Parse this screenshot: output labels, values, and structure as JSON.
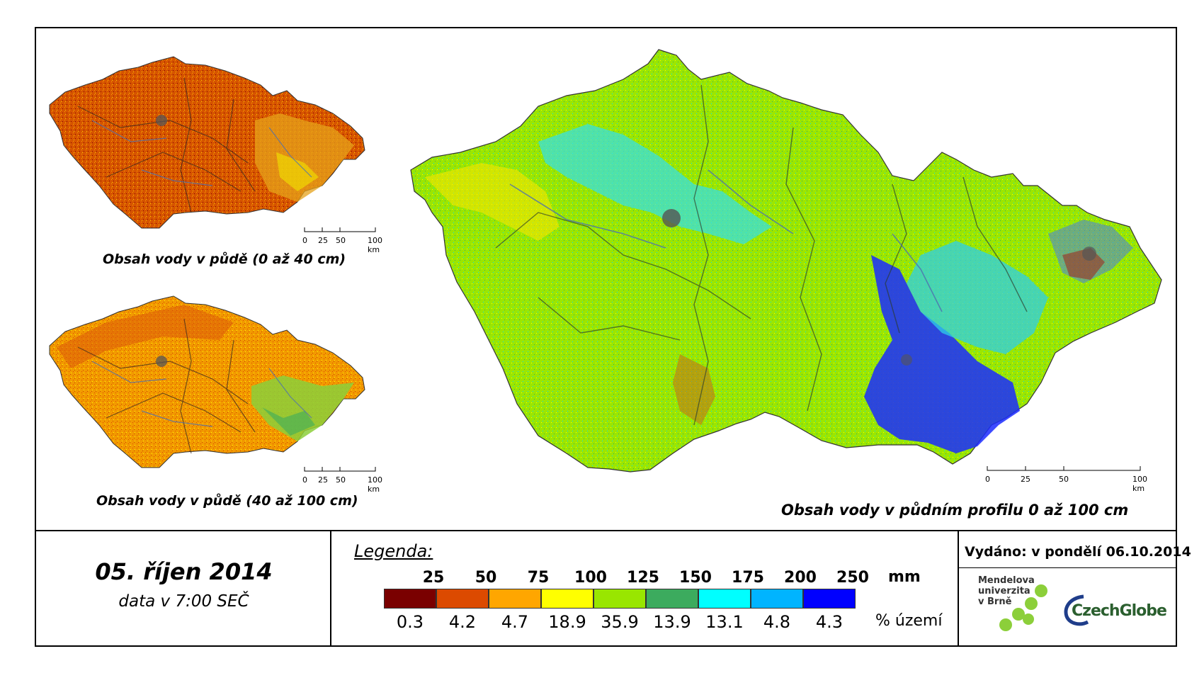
{
  "maps": {
    "small_top_title": "Obsah vody v půdě (0 až 40 cm)",
    "small_bottom_title": "Obsah vody v půdě (40 až 100 cm)",
    "main_title": "Obsah vody v půdním profilu 0 až 100 cm"
  },
  "scale": {
    "small_labels": [
      "0",
      "25",
      "50",
      "100 km"
    ],
    "main_labels": [
      "0",
      "25",
      "50",
      "100 km"
    ]
  },
  "date": {
    "main": "05. říjen 2014",
    "sub": "data v 7:00 SEČ"
  },
  "legend": {
    "title": "Legenda:",
    "unit": "mm",
    "share_label": "% území",
    "thresholds": [
      "25",
      "50",
      "75",
      "100",
      "125",
      "150",
      "175",
      "200",
      "250"
    ],
    "colors": [
      "#7a0000",
      "#dc4a00",
      "#ffa600",
      "#ffff00",
      "#99e600",
      "#3cab5e",
      "#00ffff",
      "#00b4ff",
      "#0000ff"
    ],
    "percentages": [
      "0.3",
      "4.2",
      "4.7",
      "18.9",
      "35.9",
      "13.9",
      "13.1",
      "4.8",
      "4.3"
    ]
  },
  "issued": "Vydáno: v pondělí 06.10.2014",
  "logos": {
    "mendel_lines": [
      "Mendelova",
      "univerzita",
      "v Brně"
    ],
    "czechglobe": "CzechGlobe"
  }
}
